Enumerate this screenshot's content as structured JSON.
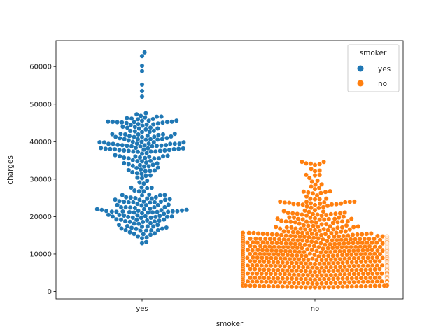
{
  "chart_data": {
    "type": "swarm",
    "title": "",
    "xlabel": "smoker",
    "ylabel": "charges",
    "categories": [
      "yes",
      "no"
    ],
    "ylim": [
      -2000,
      67500
    ],
    "yticks": [
      0,
      10000,
      20000,
      30000,
      40000,
      50000,
      60000
    ],
    "ytick_labels": [
      "0",
      "10000",
      "20000",
      "30000",
      "40000",
      "50000",
      "60000"
    ],
    "grid": false,
    "legend": {
      "title": "smoker",
      "placement": "upper right",
      "entries": [
        {
          "label": "yes",
          "color": "#1f77b4"
        },
        {
          "label": "no",
          "color": "#ff7f0e"
        }
      ]
    },
    "series": [
      {
        "name": "yes",
        "category": "yes",
        "color": "#1f77b4",
        "n_points": 274,
        "distribution": {
          "min": 12800,
          "max": 63800,
          "dense_bands": [
            [
              15000,
              29000
            ],
            [
              33000,
              49000
            ]
          ],
          "sparse_gap": [
            30000,
            32500
          ],
          "outliers": [
            52000,
            53500,
            55200,
            58800,
            60200,
            62800,
            63800
          ]
        }
      },
      {
        "name": "no",
        "category": "no",
        "color": "#ff7f0e",
        "n_points": 1064,
        "distribution": {
          "min": 1100,
          "max": 36900,
          "dense_band": [
            1100,
            14500
          ],
          "tail": [
            15000,
            36900
          ]
        }
      }
    ]
  }
}
